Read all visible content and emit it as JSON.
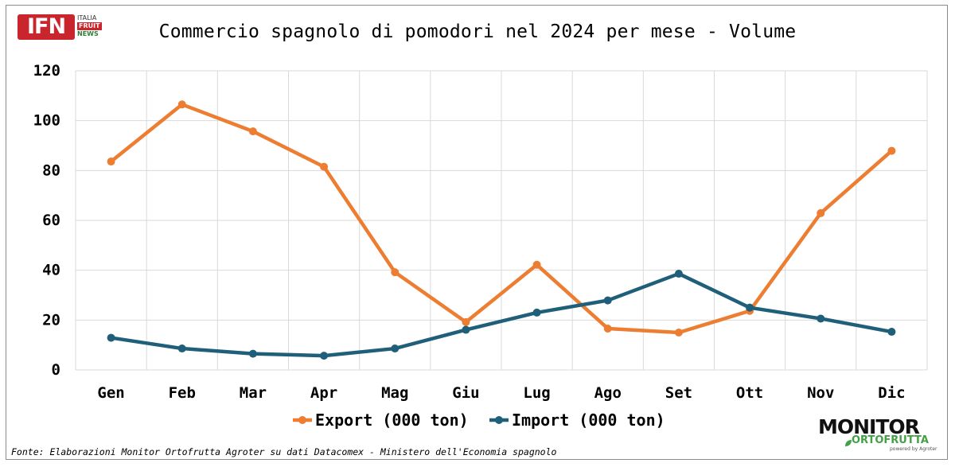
{
  "header": {
    "title": "Commercio spagnolo di pomodori nel 2024 per mese - Volume"
  },
  "logo_ifn": {
    "main": "IFN",
    "line1": "ITALIA",
    "line2": "FRUIT",
    "line3": "NEWS"
  },
  "logo_monitor": {
    "main": "MONITOR",
    "sub": "ORTOFRUTTA",
    "powered": "powered by Agroter"
  },
  "footer": {
    "source": "Fonte: Elaborazioni Monitor Ortofrutta Agroter su dati Datacomex - Ministero dell'Economia spagnolo"
  },
  "colors": {
    "export": "#ed7d31",
    "import": "#1f5f7a",
    "grid": "#d9d9d9"
  },
  "chart_data": {
    "type": "line",
    "title": "Commercio spagnolo di pomodori nel 2024 per mese - Volume",
    "xlabel": "",
    "ylabel": "",
    "categories": [
      "Gen",
      "Feb",
      "Mar",
      "Apr",
      "Mag",
      "Giu",
      "Lug",
      "Ago",
      "Set",
      "Ott",
      "Nov",
      "Dic"
    ],
    "ylim": [
      0,
      120
    ],
    "yticks": [
      0,
      20,
      40,
      60,
      80,
      100,
      120
    ],
    "grid": true,
    "legend": "bottom-center",
    "series": [
      {
        "name": "Export (000 ton)",
        "color": "#ed7d31",
        "values": [
          83.6,
          106.5,
          95.7,
          81.5,
          39.2,
          19.2,
          42.2,
          16.6,
          15.0,
          23.7,
          62.9,
          87.9
        ]
      },
      {
        "name": "Import (000 ton)",
        "color": "#1f5f7a",
        "values": [
          12.9,
          8.6,
          6.5,
          5.7,
          8.6,
          16.1,
          23.0,
          27.9,
          38.6,
          25.0,
          20.6,
          15.3
        ]
      }
    ]
  }
}
